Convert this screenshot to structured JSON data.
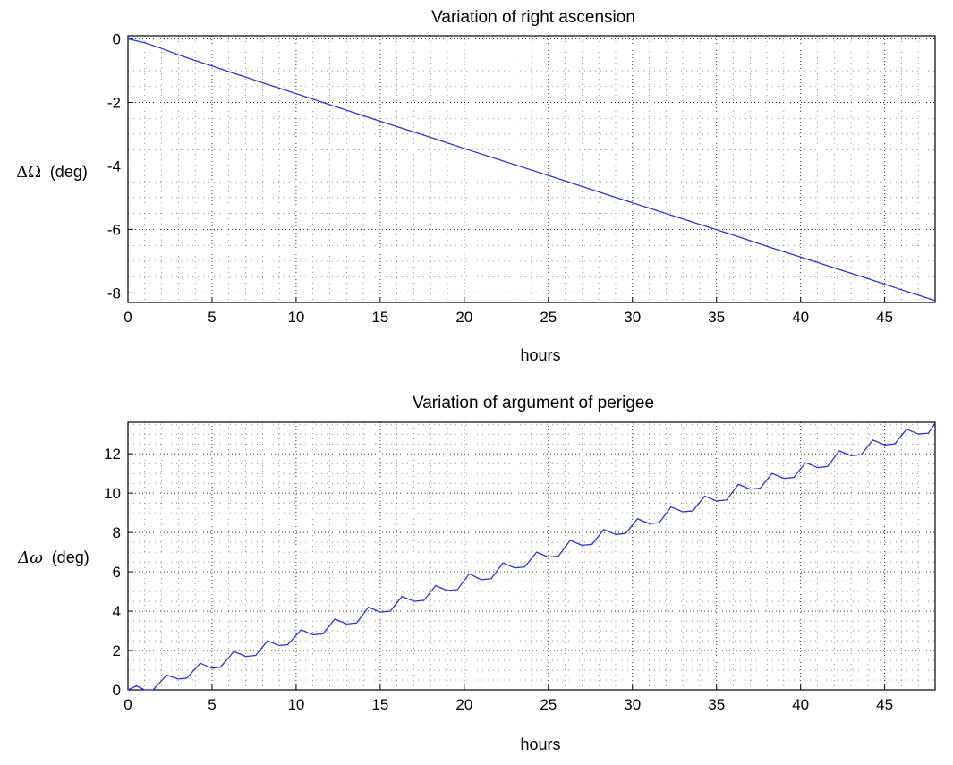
{
  "chart_data": [
    {
      "type": "line",
      "title": "Variation of right ascension",
      "xlabel": "hours",
      "ylabel_symbol": "ΔΩ",
      "ylabel_unit": "(deg)",
      "xlim": [
        0,
        48
      ],
      "ylim": [
        -8.3,
        0.1
      ],
      "xticks": [
        0,
        5,
        10,
        15,
        20,
        25,
        30,
        35,
        40,
        45
      ],
      "yticks": [
        0,
        -2,
        -4,
        -6,
        -8
      ],
      "ytick_labels": [
        "0",
        "-2",
        "-4",
        "-6",
        "-8"
      ],
      "grid": true,
      "line_color": "#2b35d6",
      "series": [
        {
          "x": [
            0,
            1,
            2,
            3,
            4,
            5,
            6,
            7,
            8,
            9,
            10,
            12,
            14,
            16,
            18,
            20,
            22,
            24,
            26,
            28,
            30,
            32,
            34,
            36,
            38,
            40,
            42,
            44,
            46,
            48
          ],
          "values": [
            0,
            -0.12,
            -0.3,
            -0.5,
            -0.68,
            -0.85,
            -1.03,
            -1.2,
            -1.38,
            -1.55,
            -1.72,
            -2.07,
            -2.42,
            -2.76,
            -3.1,
            -3.45,
            -3.79,
            -4.13,
            -4.47,
            -4.82,
            -5.16,
            -5.5,
            -5.84,
            -6.18,
            -6.53,
            -6.87,
            -7.21,
            -7.55,
            -7.9,
            -8.24
          ]
        }
      ]
    },
    {
      "type": "line",
      "title": "Variation of argument of perigee",
      "xlabel": "hours",
      "ylabel_symbol": "Δω",
      "ylabel_unit": "(deg)",
      "xlim": [
        0,
        48
      ],
      "ylim": [
        0,
        13.6
      ],
      "xticks": [
        0,
        5,
        10,
        15,
        20,
        25,
        30,
        35,
        40,
        45
      ],
      "yticks": [
        0,
        2,
        4,
        6,
        8,
        10,
        12
      ],
      "ytick_labels": [
        "0",
        "2",
        "4",
        "6",
        "8",
        "10",
        "12"
      ],
      "grid": true,
      "line_color": "#2b35d6",
      "series": [
        {
          "x": [
            0,
            0.5,
            1.0,
            1.5,
            2.3,
            3.0,
            3.5,
            4.3,
            5.0,
            5.5,
            6.3,
            7.0,
            7.6,
            8.3,
            9.0,
            9.5,
            10.3,
            11.0,
            11.6,
            12.3,
            13.0,
            13.6,
            14.3,
            15.0,
            15.6,
            16.3,
            17.0,
            17.6,
            18.3,
            19.0,
            19.6,
            20.3,
            21.0,
            21.6,
            22.3,
            23.0,
            23.6,
            24.3,
            25.0,
            25.6,
            26.3,
            27.0,
            27.6,
            28.3,
            29.0,
            29.6,
            30.3,
            31.0,
            31.6,
            32.3,
            33.0,
            33.6,
            34.3,
            35.0,
            35.6,
            36.3,
            37.0,
            37.6,
            38.3,
            39.0,
            39.6,
            40.3,
            41.0,
            41.6,
            42.3,
            43.0,
            43.6,
            44.3,
            45.0,
            45.6,
            46.3,
            47.0,
            47.6,
            48.0
          ],
          "values": [
            0.0,
            0.2,
            0.0,
            0.0,
            0.75,
            0.55,
            0.6,
            1.35,
            1.1,
            1.15,
            1.95,
            1.7,
            1.75,
            2.5,
            2.25,
            2.3,
            3.05,
            2.8,
            2.85,
            3.6,
            3.35,
            3.4,
            4.2,
            3.95,
            4.0,
            4.75,
            4.5,
            4.55,
            5.3,
            5.05,
            5.1,
            5.9,
            5.6,
            5.65,
            6.45,
            6.2,
            6.25,
            7.0,
            6.75,
            6.8,
            7.6,
            7.35,
            7.4,
            8.15,
            7.9,
            7.95,
            8.7,
            8.45,
            8.5,
            9.3,
            9.05,
            9.1,
            9.85,
            9.6,
            9.65,
            10.45,
            10.2,
            10.25,
            11.0,
            10.75,
            10.8,
            11.55,
            11.3,
            11.35,
            12.15,
            11.9,
            11.95,
            12.7,
            12.45,
            12.5,
            13.25,
            13.0,
            13.05,
            13.55
          ]
        }
      ]
    }
  ]
}
